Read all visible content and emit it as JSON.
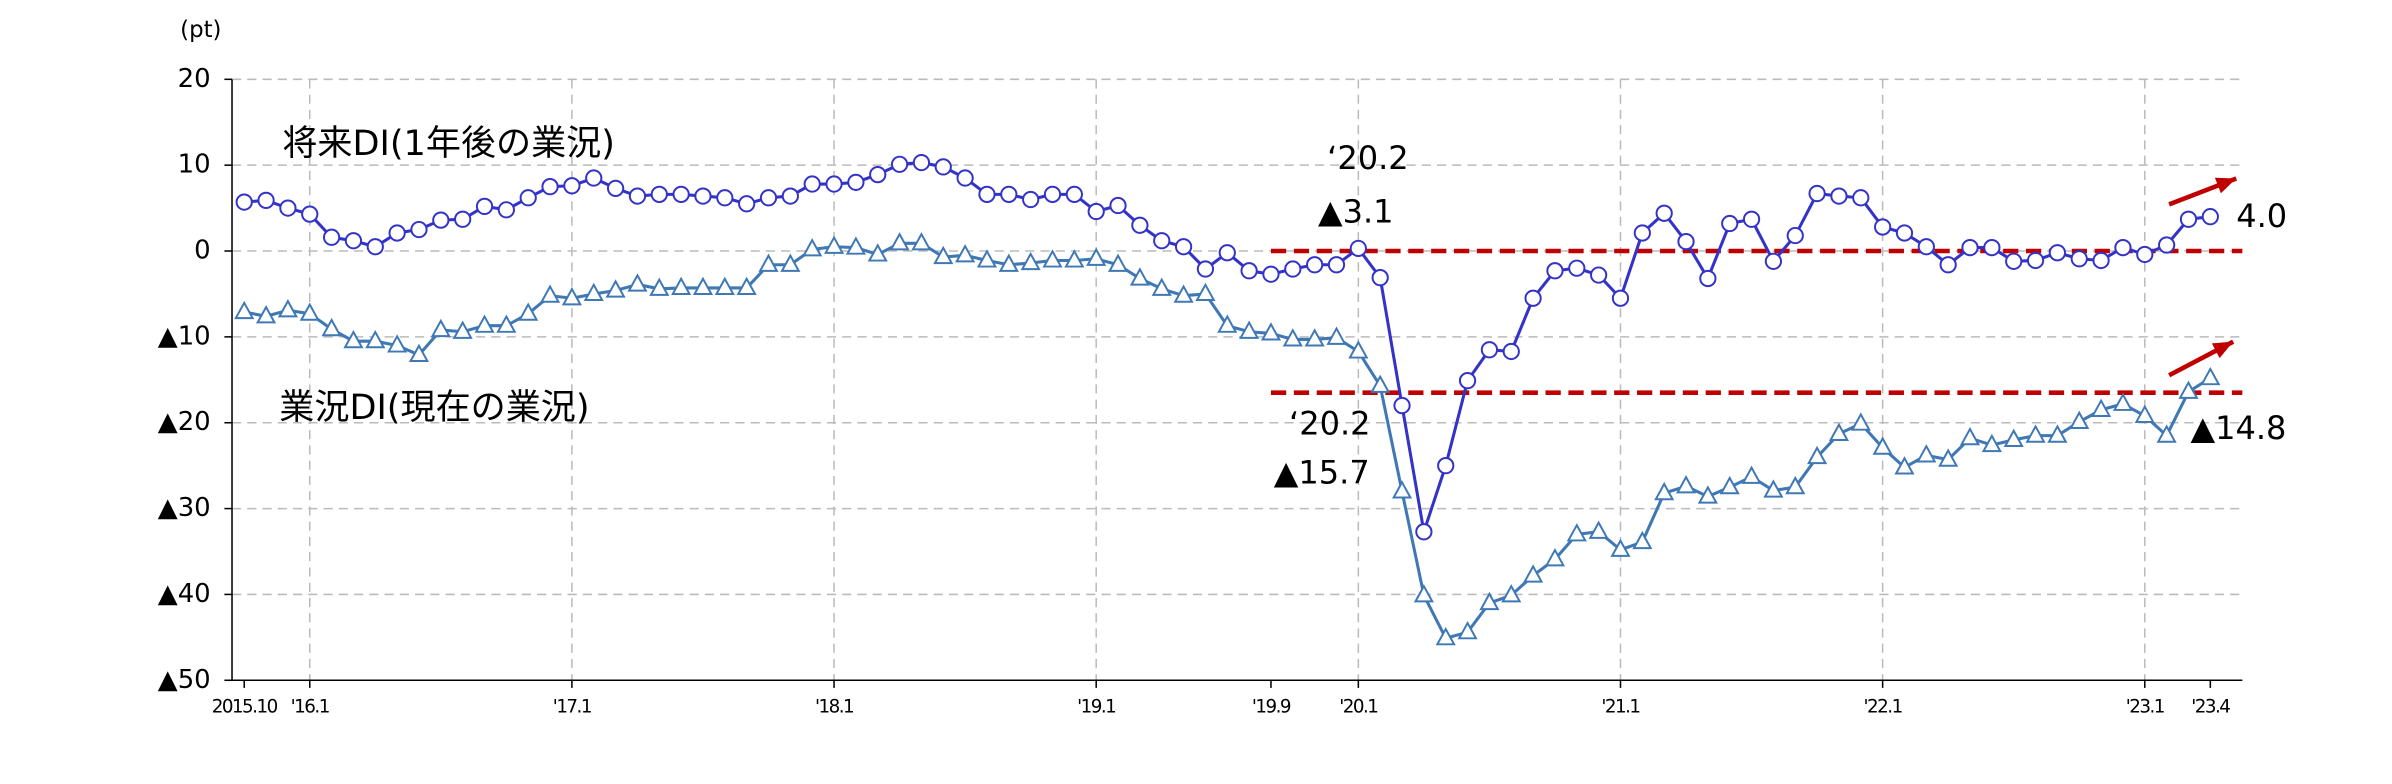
{
  "chart_data": {
    "type": "line",
    "y_axis_label": "(pt)",
    "categories": [
      "2015.10",
      null,
      null,
      "'16.1",
      null,
      null,
      null,
      null,
      null,
      null,
      null,
      null,
      null,
      null,
      null,
      "'17.1",
      null,
      null,
      null,
      null,
      null,
      null,
      null,
      null,
      null,
      null,
      null,
      "'18.1",
      null,
      null,
      null,
      null,
      null,
      null,
      null,
      null,
      null,
      null,
      null,
      "'19.1",
      null,
      null,
      null,
      null,
      null,
      null,
      null,
      "'19.9",
      null,
      null,
      null,
      "'20.1",
      null,
      null,
      null,
      null,
      null,
      null,
      null,
      null,
      null,
      null,
      null,
      "'21.1",
      null,
      null,
      null,
      null,
      null,
      null,
      null,
      null,
      null,
      null,
      null,
      "'22.1",
      null,
      null,
      null,
      null,
      null,
      null,
      null,
      null,
      null,
      null,
      null,
      "'23.1",
      null,
      null,
      "'23.4"
    ],
    "series": [
      {
        "name": "将来DI(1年後の業況)",
        "color": "#3333c8",
        "marker": "circle",
        "values": [
          5.7,
          5.9,
          5.0,
          4.3,
          1.6,
          1.2,
          0.5,
          2.1,
          2.5,
          3.6,
          3.7,
          5.2,
          4.8,
          6.2,
          7.5,
          7.6,
          8.5,
          7.3,
          6.4,
          6.6,
          6.6,
          6.4,
          6.2,
          5.5,
          6.2,
          6.4,
          7.8,
          7.8,
          8.0,
          8.9,
          10.1,
          10.3,
          9.8,
          8.5,
          6.6,
          6.6,
          6.0,
          6.6,
          6.6,
          4.6,
          5.3,
          3.0,
          1.2,
          0.5,
          -2.1,
          -0.2,
          -2.3,
          -2.7,
          -2.1,
          -1.6,
          -1.6,
          0.3,
          -3.1,
          -18.0,
          -32.7,
          -25.0,
          -15.1,
          -11.5,
          -11.7,
          -5.5,
          -2.3,
          -2.0,
          -2.8,
          -5.5,
          2.1,
          4.4,
          1.1,
          -3.2,
          3.2,
          3.7,
          -1.2,
          1.8,
          6.7,
          6.4,
          6.2,
          2.8,
          2.1,
          0.5,
          -1.6,
          0.4,
          0.4,
          -1.2,
          -1.1,
          -0.2,
          -0.9,
          -1.1,
          0.4,
          -0.4,
          0.7,
          3.7,
          4.0
        ]
      },
      {
        "name": "業況DI(現在の業況)",
        "color": "#3f78b4",
        "marker": "triangle",
        "values": [
          -7.1,
          -7.6,
          -6.9,
          -7.3,
          -9.1,
          -10.5,
          -10.5,
          -11.0,
          -12.1,
          -9.2,
          -9.4,
          -8.7,
          -8.7,
          -7.3,
          -5.2,
          -5.5,
          -5.0,
          -4.6,
          -3.9,
          -4.4,
          -4.3,
          -4.3,
          -4.3,
          -4.3,
          -1.6,
          -1.6,
          0.2,
          0.5,
          0.4,
          -0.4,
          0.9,
          0.9,
          -0.7,
          -0.5,
          -1.1,
          -1.6,
          -1.4,
          -1.1,
          -1.1,
          -0.9,
          -1.6,
          -3.2,
          -4.4,
          -5.2,
          -5.0,
          -8.7,
          -9.4,
          -9.6,
          -10.3,
          -10.3,
          -10.1,
          -11.7,
          -15.7,
          -28.0,
          -40.1,
          -45.1,
          -44.4,
          -41.0,
          -40.1,
          -37.8,
          -35.9,
          -33.0,
          -32.7,
          -34.8,
          -33.9,
          -28.2,
          -27.4,
          -28.6,
          -27.5,
          -26.3,
          -27.9,
          -27.5,
          -24.0,
          -21.3,
          -20.1,
          -22.9,
          -25.2,
          -23.8,
          -24.3,
          -21.8,
          -22.6,
          -22.0,
          -21.5,
          -21.5,
          -19.9,
          -18.5,
          -17.8,
          -19.2,
          -21.5,
          -16.4,
          -14.8
        ]
      }
    ],
    "ylim": [
      -50,
      20
    ],
    "yticks": [
      20,
      10,
      0,
      {
        "value": -10,
        "label": "▲10"
      },
      {
        "value": -20,
        "label": "▲20"
      },
      {
        "value": -30,
        "label": "▲30"
      },
      {
        "value": -40,
        "label": "▲40"
      },
      {
        "value": -50,
        "label": "▲50"
      }
    ],
    "grid": true,
    "reference_lines": [
      {
        "value": 0,
        "color": "#c00000"
      },
      {
        "value": -16.5,
        "color": "#c00000"
      }
    ],
    "annotations": [
      "‘20.2",
      "▲3.1",
      "‘20.2",
      "▲15.7",
      "4.0",
      "▲14.8"
    ]
  }
}
